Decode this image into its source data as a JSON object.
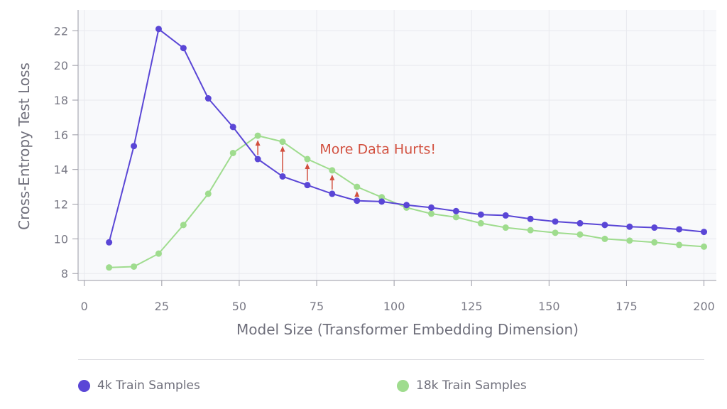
{
  "chart_data": {
    "type": "line",
    "title": "",
    "xlabel": "Model Size (Transformer Embedding Dimension)",
    "ylabel": "Cross-Entropy Test Loss",
    "xlim": [
      -2,
      204
    ],
    "ylim": [
      7.6,
      23.2
    ],
    "xticks": [
      0,
      25,
      50,
      75,
      100,
      125,
      150,
      175,
      200
    ],
    "yticks": [
      8,
      10,
      12,
      14,
      16,
      18,
      20,
      22
    ],
    "grid": true,
    "legend_position": "bottom",
    "annotation": {
      "text": "More Data Hurts!",
      "x": 76,
      "y": 14.9,
      "color": "#d2503f",
      "arrows_x": [
        56,
        64,
        72,
        80,
        88
      ]
    },
    "x": [
      8,
      16,
      24,
      32,
      40,
      48,
      56,
      64,
      72,
      80,
      88,
      96,
      104,
      112,
      120,
      128,
      136,
      144,
      152,
      160,
      168,
      176,
      184,
      192,
      200
    ],
    "series": [
      {
        "name": "4k Train Samples",
        "color": "#5a46d6",
        "values": [
          9.8,
          15.35,
          22.1,
          21.0,
          18.1,
          16.45,
          14.6,
          13.6,
          13.1,
          12.6,
          12.2,
          12.15,
          11.95,
          11.8,
          11.6,
          11.4,
          11.35,
          11.15,
          11.0,
          10.9,
          10.8,
          10.7,
          10.65,
          10.55,
          10.4
        ]
      },
      {
        "name": "18k Train Samples",
        "color": "#9fdc8e",
        "values": [
          8.35,
          8.4,
          9.15,
          10.8,
          12.6,
          14.95,
          15.95,
          15.6,
          14.6,
          13.95,
          13.0,
          12.4,
          11.8,
          11.45,
          11.25,
          10.9,
          10.65,
          10.5,
          10.35,
          10.25,
          10.0,
          9.9,
          9.8,
          9.65,
          9.55
        ]
      }
    ]
  }
}
